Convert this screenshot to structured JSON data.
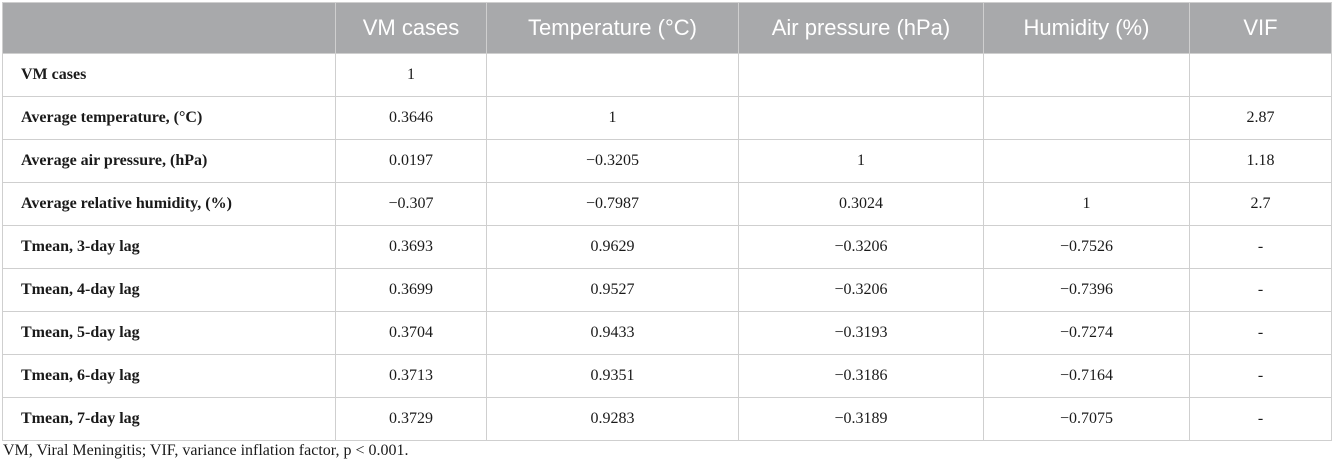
{
  "table": {
    "headers": [
      "",
      "VM cases",
      "Temperature (°C)",
      "Air pressure (hPa)",
      "Humidity (%)",
      "VIF"
    ],
    "rows": [
      [
        "VM cases",
        "1",
        "",
        "",
        "",
        ""
      ],
      [
        "Average temperature, (°C)",
        "0.3646",
        "1",
        "",
        "",
        "2.87"
      ],
      [
        "Average air pressure, (hPa)",
        "0.0197",
        "−0.3205",
        "1",
        "",
        "1.18"
      ],
      [
        "Average relative humidity, (%)",
        "−0.307",
        "−0.7987",
        "0.3024",
        "1",
        "2.7"
      ],
      [
        "Tmean, 3-day lag",
        "0.3693",
        "0.9629",
        "−0.3206",
        "−0.7526",
        "-"
      ],
      [
        "Tmean, 4-day lag",
        "0.3699",
        "0.9527",
        "−0.3206",
        "−0.7396",
        "-"
      ],
      [
        "Tmean, 5-day lag",
        "0.3704",
        "0.9433",
        "−0.3193",
        "−0.7274",
        "-"
      ],
      [
        "Tmean, 6-day lag",
        "0.3713",
        "0.9351",
        "−0.3186",
        "−0.7164",
        "-"
      ],
      [
        "Tmean, 7-day lag",
        "0.3729",
        "0.9283",
        "−0.3189",
        "−0.7075",
        "-"
      ]
    ]
  },
  "footnote": "VM, Viral Meningitis; VIF, variance inflation factor, p < 0.001.",
  "colors": {
    "header_bg": "#a8a9ab",
    "header_text": "#ffffff",
    "grid_line": "#cfcfcf",
    "body_text": "#1a1a1a"
  }
}
